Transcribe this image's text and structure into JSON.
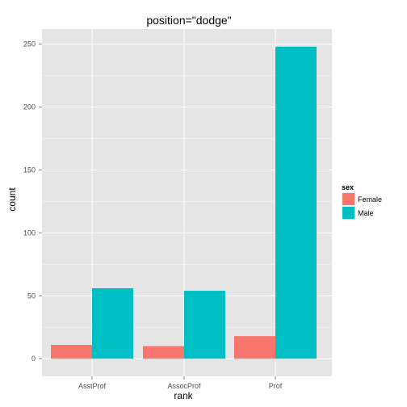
{
  "chart_data": {
    "type": "bar",
    "title": "position=\"dodge\"",
    "xlabel": "rank",
    "ylabel": "count",
    "categories": [
      "AsstProf",
      "AssocProf",
      "Prof"
    ],
    "series": [
      {
        "name": "Female",
        "values": [
          11,
          10,
          18
        ],
        "color": "#F8766D"
      },
      {
        "name": "Male",
        "values": [
          56,
          54,
          248
        ],
        "color": "#00BFC4"
      }
    ],
    "ylim": [
      -14,
      262
    ],
    "yticks": [
      0,
      50,
      100,
      150,
      200,
      250
    ],
    "ytick_labels": [
      "0",
      "50",
      "100",
      "150",
      "200",
      "250"
    ],
    "legend": {
      "title": "sex",
      "placement": "right"
    },
    "grid": true,
    "panel_color": "#E5E5E5",
    "grid_color": "#FFFFFF"
  }
}
